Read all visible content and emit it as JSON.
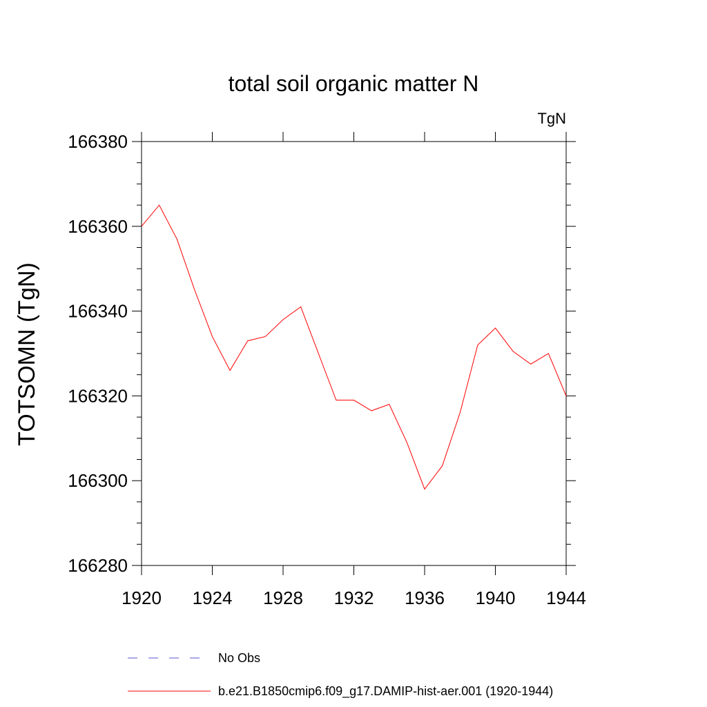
{
  "chart_data": {
    "type": "line",
    "title": "total soil organic matter N",
    "units": "TgN",
    "xlabel": "",
    "ylabel": "TOTSOMN  (TgN)",
    "xlim": [
      1920,
      1944
    ],
    "ylim": [
      166280,
      166380
    ],
    "x_ticks": [
      1920,
      1924,
      1928,
      1932,
      1936,
      1940,
      1944
    ],
    "x_tick_labels": [
      "1920",
      "1924",
      "1928",
      "1932",
      "1936",
      "1940",
      "1944"
    ],
    "y_ticks": [
      166280,
      166300,
      166320,
      166340,
      166360,
      166380
    ],
    "y_tick_labels": [
      "166280",
      "166300",
      "166320",
      "166340",
      "166360",
      "166380"
    ],
    "grid": false,
    "legend_placement": "bottom",
    "series": [
      {
        "name": "No Obs",
        "style": "dashed",
        "color": "#5555cc",
        "x": [],
        "values": []
      },
      {
        "name": "b.e21.B1850cmip6.f09_g17.DAMIP-hist-aer.001 (1920-1944)",
        "style": "solid",
        "color": "#ff0000",
        "x": [
          1920,
          1921,
          1922,
          1923,
          1924,
          1925,
          1926,
          1927,
          1928,
          1929,
          1930,
          1931,
          1932,
          1933,
          1934,
          1935,
          1936,
          1937,
          1938,
          1939,
          1940,
          1941,
          1942,
          1943,
          1944
        ],
        "values": [
          166360,
          166365,
          166357,
          166345,
          166334,
          166326,
          166333,
          166334,
          166338,
          166341,
          166330,
          166319,
          166319,
          166316.5,
          166318,
          166309,
          166298,
          166303.5,
          166316,
          166332,
          166336,
          166330.5,
          166327.5,
          166330,
          166320
        ]
      }
    ]
  }
}
